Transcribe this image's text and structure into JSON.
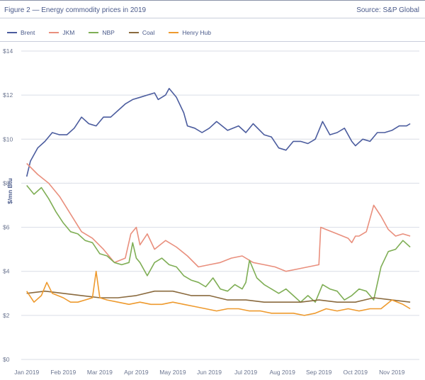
{
  "header": {
    "title": "Figure 2 — Energy commodity prices in 2019",
    "source": "Source: S&P Global"
  },
  "colors": {
    "brent": "#4b5c9e",
    "jkm": "#e98f7d",
    "nbp": "#7fae55",
    "coal": "#8a6a3e",
    "henry_hub": "#ee9a2e",
    "grid": "#d9dde6"
  },
  "chart_data": {
    "type": "line",
    "title": "Energy commodity prices in 2019",
    "xlabel": "",
    "ylabel": "$/mn Btu",
    "ylim": [
      0,
      14
    ],
    "yticks": [
      0,
      2,
      4,
      6,
      8,
      10,
      12,
      14
    ],
    "ytick_labels": [
      "$0",
      "$2",
      "$4",
      "$6",
      "$8",
      "$10",
      "$12",
      "$14"
    ],
    "x_unit": "month index (0 = start of Jan 2019)",
    "xlim": [
      -0.15,
      10.75
    ],
    "xticks": [
      0,
      1,
      2,
      3,
      4,
      5,
      6,
      7,
      8,
      9,
      10
    ],
    "xtick_labels": [
      "Jan 2019",
      "Feb 2019",
      "Mar 2019",
      "Apr 2019",
      "May 2019",
      "Jun 2019",
      "Jul 2019",
      "Aug 2019",
      "Sep 2019",
      "Oct 2019",
      "Nov 2019"
    ],
    "grid": true,
    "legend_position": "top-left",
    "series": [
      {
        "name": "Brent",
        "color_key": "brent",
        "x": [
          0.0,
          0.1,
          0.3,
          0.5,
          0.7,
          0.9,
          1.1,
          1.3,
          1.5,
          1.7,
          1.9,
          2.1,
          2.3,
          2.5,
          2.7,
          2.9,
          3.1,
          3.3,
          3.5,
          3.6,
          3.8,
          3.9,
          4.1,
          4.3,
          4.4,
          4.6,
          4.8,
          5.0,
          5.2,
          5.5,
          5.8,
          6.0,
          6.2,
          6.5,
          6.7,
          6.9,
          7.1,
          7.3,
          7.5,
          7.7,
          7.9,
          8.1,
          8.3,
          8.5,
          8.7,
          8.9,
          9.0,
          9.2,
          9.4,
          9.6,
          9.8,
          10.0,
          10.2,
          10.4,
          10.5
        ],
        "values": [
          8.3,
          9.0,
          9.6,
          9.9,
          10.3,
          10.2,
          10.2,
          10.5,
          11.0,
          10.7,
          10.6,
          11.0,
          11.0,
          11.3,
          11.6,
          11.8,
          11.9,
          12.0,
          12.1,
          11.8,
          12.0,
          12.3,
          11.9,
          11.2,
          10.6,
          10.5,
          10.3,
          10.5,
          10.8,
          10.4,
          10.6,
          10.3,
          10.7,
          10.2,
          10.1,
          9.6,
          9.5,
          9.9,
          9.9,
          9.8,
          10.0,
          10.8,
          10.2,
          10.3,
          10.5,
          9.9,
          9.7,
          10.0,
          9.9,
          10.3,
          10.3,
          10.4,
          10.6,
          10.6,
          10.7
        ]
      },
      {
        "name": "JKM",
        "color_key": "jkm",
        "x": [
          0.0,
          0.3,
          0.6,
          0.9,
          1.2,
          1.5,
          1.8,
          2.1,
          2.4,
          2.7,
          2.85,
          3.0,
          3.1,
          3.3,
          3.5,
          3.8,
          4.1,
          4.4,
          4.7,
          5.0,
          5.3,
          5.6,
          5.9,
          6.2,
          6.5,
          6.8,
          7.1,
          7.4,
          7.7,
          8.0,
          8.05,
          8.2,
          8.5,
          8.8,
          8.9,
          9.0,
          9.1,
          9.3,
          9.5,
          9.7,
          9.9,
          10.1,
          10.3,
          10.5
        ],
        "values": [
          8.9,
          8.4,
          8.0,
          7.4,
          6.6,
          5.8,
          5.5,
          5.0,
          4.4,
          4.6,
          5.7,
          6.0,
          5.2,
          5.7,
          5.0,
          5.4,
          5.1,
          4.7,
          4.2,
          4.3,
          4.4,
          4.6,
          4.7,
          4.4,
          4.3,
          4.2,
          4.0,
          4.1,
          4.2,
          4.3,
          6.0,
          5.9,
          5.7,
          5.5,
          5.3,
          5.6,
          5.6,
          5.8,
          7.0,
          6.5,
          5.9,
          5.6,
          5.7,
          5.6
        ]
      },
      {
        "name": "NBP",
        "color_key": "nbp",
        "x": [
          0.0,
          0.2,
          0.4,
          0.6,
          0.8,
          1.0,
          1.2,
          1.4,
          1.6,
          1.8,
          2.0,
          2.2,
          2.4,
          2.6,
          2.8,
          2.9,
          3.0,
          3.1,
          3.3,
          3.5,
          3.7,
          3.9,
          4.1,
          4.3,
          4.5,
          4.7,
          4.9,
          5.1,
          5.3,
          5.5,
          5.7,
          5.9,
          6.0,
          6.1,
          6.3,
          6.5,
          6.7,
          6.9,
          7.1,
          7.3,
          7.5,
          7.7,
          7.9,
          8.1,
          8.3,
          8.5,
          8.7,
          8.9,
          9.1,
          9.3,
          9.5,
          9.7,
          9.9,
          10.1,
          10.3,
          10.5
        ],
        "values": [
          7.9,
          7.5,
          7.8,
          7.3,
          6.7,
          6.2,
          5.8,
          5.7,
          5.4,
          5.3,
          4.8,
          4.7,
          4.4,
          4.3,
          4.4,
          5.3,
          4.6,
          4.4,
          3.8,
          4.4,
          4.6,
          4.3,
          4.2,
          3.8,
          3.6,
          3.5,
          3.3,
          3.7,
          3.2,
          3.1,
          3.4,
          3.2,
          3.5,
          4.5,
          3.7,
          3.4,
          3.2,
          3.0,
          3.2,
          2.9,
          2.6,
          2.9,
          2.6,
          3.4,
          3.2,
          3.1,
          2.7,
          2.9,
          3.2,
          3.1,
          2.7,
          4.2,
          4.9,
          5.0,
          5.4,
          5.1
        ]
      },
      {
        "name": "Coal",
        "color_key": "coal",
        "x": [
          0.0,
          0.5,
          1.0,
          1.5,
          2.0,
          2.5,
          3.0,
          3.5,
          4.0,
          4.5,
          5.0,
          5.5,
          6.0,
          6.5,
          7.0,
          7.5,
          8.0,
          8.5,
          9.0,
          9.5,
          10.0,
          10.5
        ],
        "values": [
          3.0,
          3.1,
          3.0,
          2.9,
          2.8,
          2.8,
          2.9,
          3.1,
          3.1,
          2.9,
          2.9,
          2.7,
          2.7,
          2.6,
          2.6,
          2.6,
          2.7,
          2.6,
          2.6,
          2.8,
          2.7,
          2.6
        ]
      },
      {
        "name": "Henry Hub",
        "color_key": "henry_hub",
        "x": [
          0.0,
          0.2,
          0.4,
          0.55,
          0.7,
          1.0,
          1.2,
          1.4,
          1.6,
          1.8,
          1.9,
          2.0,
          2.2,
          2.5,
          2.8,
          3.1,
          3.4,
          3.7,
          4.0,
          4.3,
          4.6,
          4.9,
          5.2,
          5.5,
          5.8,
          6.1,
          6.4,
          6.7,
          7.0,
          7.3,
          7.6,
          7.9,
          8.2,
          8.5,
          8.8,
          9.1,
          9.4,
          9.7,
          10.0,
          10.3,
          10.5
        ],
        "values": [
          3.1,
          2.6,
          2.9,
          3.5,
          3.0,
          2.8,
          2.6,
          2.6,
          2.7,
          2.8,
          4.0,
          2.8,
          2.7,
          2.6,
          2.5,
          2.6,
          2.5,
          2.5,
          2.6,
          2.5,
          2.4,
          2.3,
          2.2,
          2.3,
          2.3,
          2.2,
          2.2,
          2.1,
          2.1,
          2.1,
          2.0,
          2.1,
          2.3,
          2.2,
          2.3,
          2.2,
          2.3,
          2.3,
          2.7,
          2.5,
          2.3
        ]
      }
    ]
  }
}
